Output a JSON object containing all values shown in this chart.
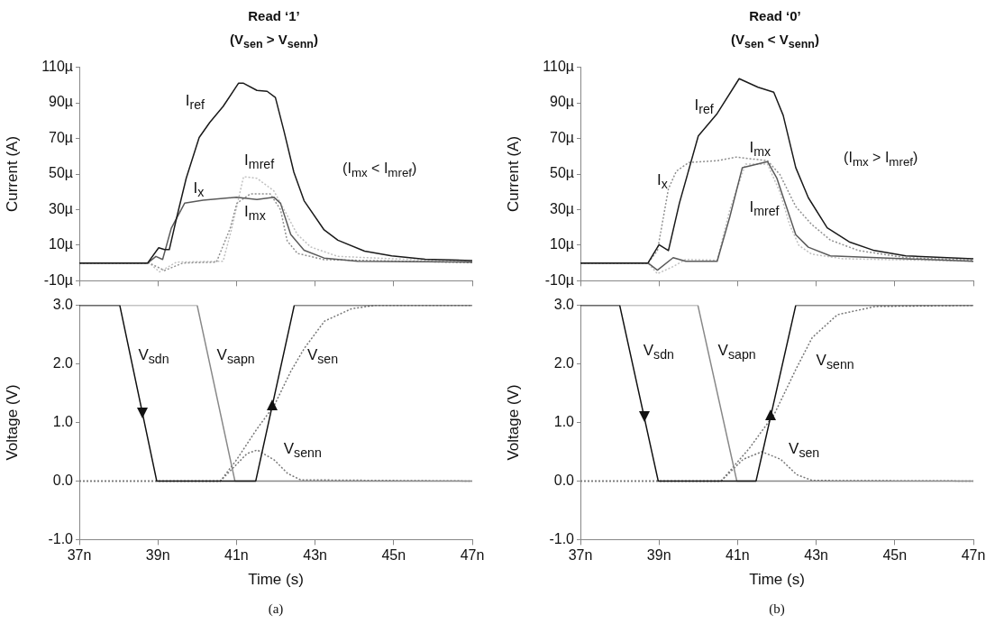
{
  "chart_data": [
    {
      "type": "line",
      "title": "Read ‘1’",
      "subtitle": "(V$_{sen}$ > V$_{senn}$)",
      "ylabel": "Current (A)",
      "xlim": [
        37,
        47
      ],
      "xticks": [
        {
          "value": 37,
          "label": null
        },
        {
          "value": 39,
          "label": null
        },
        {
          "value": 41,
          "label": null
        },
        {
          "value": 43,
          "label": null
        },
        {
          "value": 45,
          "label": null
        },
        {
          "value": 47,
          "label": null
        }
      ],
      "ylim": [
        -10,
        110
      ],
      "yticks": [
        {
          "value": -10,
          "label": "-10µ"
        },
        {
          "value": 10,
          "label": "10µ"
        },
        {
          "value": 30,
          "label": "30µ"
        },
        {
          "value": 50,
          "label": "50µ"
        },
        {
          "value": 70,
          "label": "70µ"
        },
        {
          "value": 90,
          "label": "90µ"
        },
        {
          "value": 110,
          "label": "110µ"
        }
      ],
      "tick_labels": "y",
      "grid": false,
      "legend": false,
      "marker": "none",
      "annotations": [
        "(I$_{mx}$ < I$_{mref}$)"
      ],
      "series": [
        {
          "name": "I$_{ref}$",
          "color": "#1a1a1a",
          "line_style": "solid",
          "x": [
            37,
            38.74,
            39.02,
            39.17,
            39.29,
            39.47,
            39.72,
            40.05,
            40.32,
            40.66,
            41.05,
            41.18,
            41.52,
            41.78,
            41.99,
            42.21,
            42.46,
            42.72,
            43.23,
            43.58,
            44.26,
            44.95,
            45.8,
            47
          ],
          "values": [
            0,
            0,
            8.6,
            7.6,
            7.5,
            24.8,
            47.6,
            70.5,
            79,
            88,
            101,
            101,
            97,
            96.5,
            93,
            74,
            51,
            35,
            18.6,
            12.8,
            6.7,
            4,
            2.1,
            1.4
          ]
        },
        {
          "name": "I$_{x}$",
          "color": "#5a5a5a",
          "line_style": "solid",
          "x": [
            37,
            38.74,
            38.95,
            39.12,
            39.34,
            39.68,
            40.15,
            41.0,
            41.52,
            41.95,
            42.12,
            42.38,
            42.72,
            43.23,
            44.09,
            47
          ],
          "values": [
            0,
            0,
            3.7,
            2,
            19.5,
            33.6,
            35.3,
            37,
            35.7,
            37,
            33.6,
            16,
            7.2,
            2.8,
            1,
            0.5
          ]
        },
        {
          "name": "I$_{mx}$",
          "color": "#909090",
          "line_style": "dotted",
          "x": [
            37,
            38.78,
            39.17,
            39.64,
            40.49,
            40.84,
            41.01,
            41.35,
            41.86,
            42.12,
            42.29,
            42.55,
            43.23,
            47
          ],
          "values": [
            0,
            0,
            -4.2,
            0,
            0.5,
            19.5,
            33.6,
            38.8,
            38.8,
            30,
            12.5,
            5.4,
            1.9,
            0.2
          ]
        },
        {
          "name": "I$_{mref}$",
          "color": "#c0c0c0",
          "line_style": "dotted",
          "x": [
            37,
            38.78,
            39.04,
            39.47,
            40.66,
            40.88,
            41.18,
            41.52,
            41.95,
            42.21,
            42.55,
            42.89,
            43.58,
            47
          ],
          "values": [
            0,
            0,
            -5,
            0.5,
            1,
            19.5,
            48.5,
            47.6,
            40.6,
            30,
            16,
            9,
            3.7,
            0.5
          ]
        }
      ]
    },
    {
      "type": "line",
      "xlabel": "Time (s)",
      "ylabel": "Voltage (V)",
      "xlim": [
        37,
        47
      ],
      "xticks": [
        {
          "value": 37,
          "label": "37n"
        },
        {
          "value": 39,
          "label": "39n"
        },
        {
          "value": 41,
          "label": "41n"
        },
        {
          "value": 43,
          "label": "43n"
        },
        {
          "value": 45,
          "label": "45n"
        },
        {
          "value": 47,
          "label": "47n"
        }
      ],
      "ylim": [
        -1,
        3
      ],
      "yticks": [
        {
          "value": -1,
          "label": "-1.0"
        },
        {
          "value": 0,
          "label": "0.0"
        },
        {
          "value": 1,
          "label": "1.0"
        },
        {
          "value": 2,
          "label": "2.0"
        },
        {
          "value": 3,
          "label": "3.0"
        }
      ],
      "grid": false,
      "legend": false,
      "marker": "none",
      "annotations": [
        "(a)"
      ],
      "series": [
        {
          "name": "V$_{sdn}$",
          "color": "#111111",
          "line_style": "solid",
          "x": [
            37,
            38.03,
            38.97,
            41.49,
            42.47,
            47
          ],
          "values": [
            3,
            3,
            0,
            0,
            3,
            3
          ]
        },
        {
          "name": "V$_{sapn}$",
          "color": "#888888",
          "line_style": "solid",
          "x": [
            37,
            40.0,
            40.96,
            47
          ],
          "values": [
            3,
            3,
            0,
            0
          ]
        },
        {
          "name": "V$_{sen}$",
          "color": "#777777",
          "line_style": "dotted",
          "x": [
            37,
            40.59,
            41.0,
            41.51,
            41.96,
            42.38,
            42.73,
            43.24,
            43.92,
            44.52,
            47
          ],
          "values": [
            0,
            0,
            0.36,
            0.88,
            1.29,
            1.87,
            2.27,
            2.73,
            2.94,
            3,
            3
          ]
        },
        {
          "name": "V$_{senn}$",
          "color": "#777777",
          "line_style": "dotted",
          "x": [
            37,
            40.59,
            41.27,
            41.53,
            41.96,
            42.3,
            42.63,
            47
          ],
          "values": [
            0,
            0,
            0.47,
            0.53,
            0.36,
            0.13,
            0.02,
            0
          ]
        }
      ]
    },
    {
      "type": "line",
      "title": "Read ‘0’",
      "subtitle": "(V$_{sen}$ < V$_{senn}$)",
      "ylabel": "Current (A)",
      "xlim": [
        37,
        47
      ],
      "xticks": [
        {
          "value": 37,
          "label": null
        },
        {
          "value": 39,
          "label": null
        },
        {
          "value": 41,
          "label": null
        },
        {
          "value": 43,
          "label": null
        },
        {
          "value": 45,
          "label": null
        },
        {
          "value": 47,
          "label": null
        }
      ],
      "ylim": [
        -10,
        110
      ],
      "yticks": [
        {
          "value": -10,
          "label": "-10µ"
        },
        {
          "value": 10,
          "label": "10µ"
        },
        {
          "value": 30,
          "label": "30µ"
        },
        {
          "value": 50,
          "label": "50µ"
        },
        {
          "value": 70,
          "label": "70µ"
        },
        {
          "value": 90,
          "label": "90µ"
        },
        {
          "value": 110,
          "label": "110µ"
        }
      ],
      "tick_labels": "y",
      "grid": false,
      "legend": false,
      "marker": "none",
      "annotations": [
        "(I$_{mx}$ > I$_{mref}$)"
      ],
      "series": [
        {
          "name": "I$_{ref}$",
          "color": "#1a1a1a",
          "line_style": "solid",
          "x": [
            37,
            38.72,
            39.0,
            39.24,
            39.52,
            40.0,
            40.48,
            41.04,
            41.52,
            41.92,
            42.16,
            42.48,
            42.8,
            43.28,
            43.84,
            44.48,
            45.28,
            47
          ],
          "values": [
            0,
            0,
            10.3,
            7,
            33.7,
            71.4,
            84,
            103.6,
            98.8,
            96,
            83,
            53.6,
            36.7,
            19.8,
            11.9,
            7,
            4,
            2.4
          ]
        },
        {
          "name": "I$_{mx}$",
          "color": "#5a5a5a",
          "line_style": "solid",
          "x": [
            37,
            38.72,
            38.96,
            39.36,
            39.68,
            40.48,
            40.8,
            41.12,
            41.76,
            42.0,
            42.24,
            42.48,
            42.8,
            43.36,
            47
          ],
          "values": [
            0,
            0,
            -4,
            3,
            1,
            1,
            25.8,
            53.6,
            57,
            47.6,
            31.7,
            15.9,
            8.9,
            4,
            1
          ]
        },
        {
          "name": "I$_{x}$",
          "color": "#909090",
          "line_style": "dotted",
          "x": [
            37,
            38.72,
            38.96,
            39.24,
            39.44,
            39.76,
            40.48,
            40.96,
            41.76,
            42.08,
            42.48,
            42.88,
            43.36,
            44.08,
            45.28,
            47
          ],
          "values": [
            0,
            0,
            7,
            41.7,
            51.6,
            56.5,
            57.5,
            59.5,
            57.5,
            49.6,
            31.7,
            21.8,
            12.9,
            7,
            3,
            1.6
          ]
        },
        {
          "name": "I$_{mref}$",
          "color": "#c0c0c0",
          "line_style": "dotted",
          "x": [
            37,
            38.72,
            38.96,
            39.36,
            39.68,
            40.48,
            40.8,
            41.2,
            41.76,
            42.08,
            42.32,
            42.56,
            42.88,
            43.68,
            47
          ],
          "values": [
            0,
            0,
            -6,
            -2,
            2,
            1.6,
            29.8,
            55.6,
            55.6,
            39.7,
            21.8,
            9.9,
            5,
            2.4,
            1
          ]
        }
      ]
    },
    {
      "type": "line",
      "xlabel": "Time (s)",
      "ylabel": "Voltage (V)",
      "xlim": [
        37,
        47
      ],
      "xticks": [
        {
          "value": 37,
          "label": "37n"
        },
        {
          "value": 39,
          "label": "39n"
        },
        {
          "value": 41,
          "label": "41n"
        },
        {
          "value": 43,
          "label": "43n"
        },
        {
          "value": 45,
          "label": "45n"
        },
        {
          "value": 47,
          "label": "47n"
        }
      ],
      "ylim": [
        -1,
        3
      ],
      "yticks": [
        {
          "value": -1,
          "label": "-1.0"
        },
        {
          "value": 0,
          "label": "0.0"
        },
        {
          "value": 1,
          "label": "1.0"
        },
        {
          "value": 2,
          "label": "2.0"
        },
        {
          "value": 3,
          "label": "3.0"
        }
      ],
      "grid": false,
      "legend": false,
      "marker": "none",
      "annotations": [
        "(b)"
      ],
      "series": [
        {
          "name": "V$_{sdn}$",
          "color": "#111111",
          "line_style": "solid",
          "x": [
            37,
            38.0,
            38.98,
            41.47,
            42.48,
            47
          ],
          "values": [
            3,
            3,
            0,
            0,
            3,
            3
          ]
        },
        {
          "name": "V$_{sapn}$",
          "color": "#888888",
          "line_style": "solid",
          "x": [
            37,
            39.99,
            40.98,
            47
          ],
          "values": [
            3,
            3,
            0,
            0
          ]
        },
        {
          "name": "V$_{senn}$",
          "color": "#777777",
          "line_style": "dotted",
          "x": [
            37,
            40.58,
            41.3,
            41.94,
            42.5,
            42.9,
            43.54,
            44.5,
            47
          ],
          "values": [
            0,
            0,
            0.56,
            1.15,
            1.93,
            2.45,
            2.84,
            2.98,
            3
          ]
        },
        {
          "name": "V$_{sen}$",
          "color": "#777777",
          "line_style": "dotted",
          "x": [
            37,
            40.58,
            41.14,
            41.62,
            42.1,
            42.5,
            42.9,
            47
          ],
          "values": [
            0,
            0,
            0.37,
            0.5,
            0.37,
            0.11,
            0.01,
            0
          ]
        }
      ]
    }
  ]
}
